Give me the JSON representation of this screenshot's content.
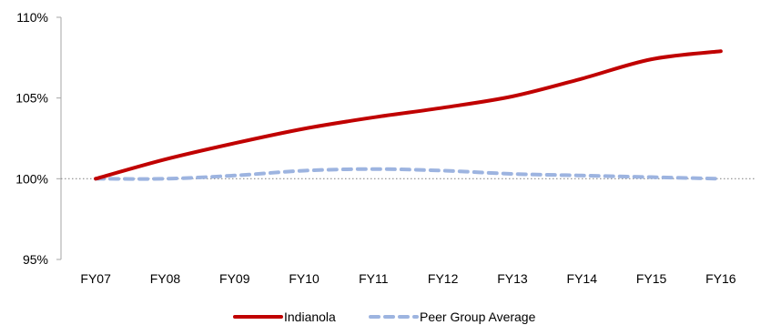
{
  "chart_data": {
    "type": "line",
    "categories": [
      "FY07",
      "FY08",
      "FY09",
      "FY10",
      "FY11",
      "FY12",
      "FY13",
      "FY14",
      "FY15",
      "FY16"
    ],
    "ylim": [
      0.95,
      1.1
    ],
    "y_ticks": [
      0.95,
      1.0,
      1.05,
      1.1
    ],
    "y_tick_labels": [
      "95%",
      "100%",
      "105%",
      "110%"
    ],
    "reference_line": 1.0,
    "grid": false,
    "legend_position": "bottom",
    "series": [
      {
        "name": "Indianola",
        "color": "#C00000",
        "style": "solid",
        "values": [
          1.0,
          1.012,
          1.022,
          1.031,
          1.038,
          1.044,
          1.051,
          1.062,
          1.074,
          1.079
        ]
      },
      {
        "name": "Peer Group Average",
        "color": "#9DB4E0",
        "style": "dashed",
        "values": [
          1.0,
          1.0,
          1.002,
          1.005,
          1.006,
          1.005,
          1.003,
          1.002,
          1.001,
          1.0
        ]
      }
    ]
  }
}
